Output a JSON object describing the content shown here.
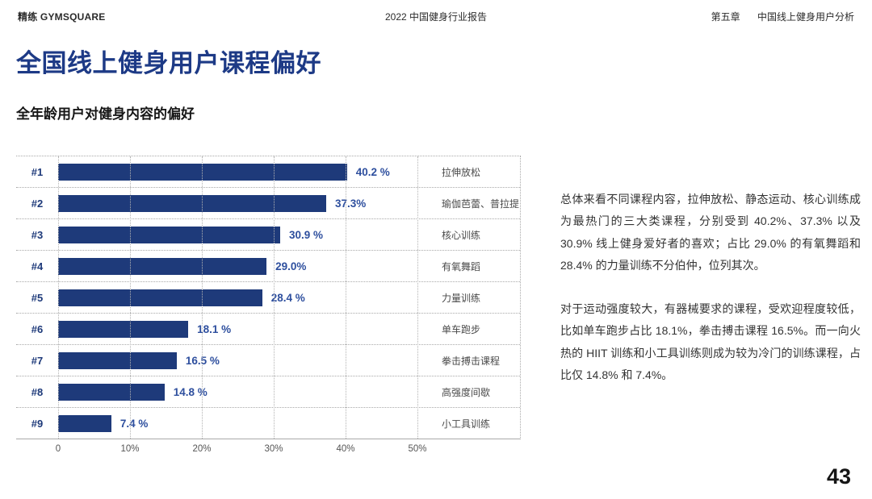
{
  "header": {
    "brand": "精练 GYMSQUARE",
    "report_title": "2022 中国健身行业报告",
    "chapter": "第五章",
    "chapter_title": "中国线上健身用户分析"
  },
  "page": {
    "title": "全国线上健身用户课程偏好",
    "subtitle": "全年龄用户对健身内容的偏好",
    "page_number": "43"
  },
  "chart_data": {
    "type": "bar",
    "orientation": "horizontal",
    "title": "全年龄用户对健身内容的偏好",
    "ranks": [
      "#1",
      "#2",
      "#3",
      "#4",
      "#5",
      "#6",
      "#7",
      "#8",
      "#9"
    ],
    "categories": [
      "拉伸放松",
      "瑜伽芭蕾、普拉提",
      "核心训练",
      "有氧舞蹈",
      "力量训练",
      "单车跑步",
      "拳击搏击课程",
      "高强度间歇",
      "小工具训练"
    ],
    "values": [
      40.2,
      37.3,
      30.9,
      29.0,
      28.4,
      18.1,
      16.5,
      14.8,
      7.4
    ],
    "value_labels": [
      "40.2 %",
      "37.3%",
      "30.9 %",
      "29.0%",
      "28.4 %",
      "18.1 %",
      "16.5 %",
      "14.8 %",
      "7.4 %"
    ],
    "x_ticks": [
      "0",
      "10%",
      "20%",
      "30%",
      "40%",
      "50%"
    ],
    "xlim": [
      0,
      50
    ],
    "grid": "dotted",
    "legend": "none",
    "bar_color": "#1e3a7a",
    "value_label_color": "#2e4f9e"
  },
  "commentary": {
    "para1": "总体来看不同课程内容，拉伸放松、静态运动、核心训练成为最热门的三大类课程，分别受到 40.2%、37.3% 以及 30.9% 线上健身爱好者的喜欢；占比 29.0% 的有氧舞蹈和 28.4% 的力量训练不分伯仲，位列其次。",
    "para2": "对于运动强度较大，有器械要求的课程，受欢迎程度较低，比如单车跑步占比 18.1%，拳击搏击课程 16.5%。而一向火热的 HIIT 训练和小工具训练则成为较为冷门的训练课程，占比仅 14.8% 和 7.4%。"
  },
  "colors": {
    "accent_navy": "#1e3a7a",
    "title_blue": "#1d3a86",
    "value_blue": "#2e4f9e",
    "grid_gray": "#a9a9a9",
    "text_gray": "#4a4a4a"
  }
}
